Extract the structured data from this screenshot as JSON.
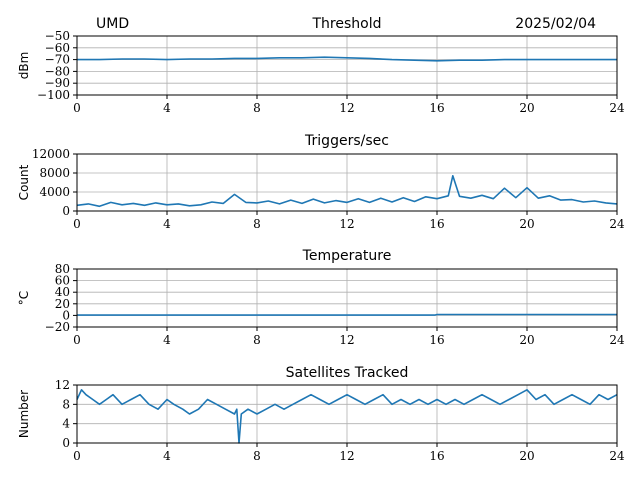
{
  "header": {
    "site": "UMD",
    "date": "2025/02/04"
  },
  "chart_data": [
    {
      "type": "line",
      "title": "Threshold",
      "xlabel": "",
      "ylabel": "dBm",
      "xlim": [
        0,
        24
      ],
      "ylim": [
        -100,
        -50
      ],
      "xticks": [
        0,
        4,
        8,
        12,
        16,
        20,
        24
      ],
      "yticks": [
        -100,
        -90,
        -80,
        -70,
        -60,
        -50
      ],
      "ytick_labels": [
        "−100",
        "−90",
        "−80",
        "−70",
        "−60",
        "−50"
      ],
      "grid": true,
      "color": "#1f77b4",
      "series": [
        {
          "x": [
            0,
            1,
            2,
            3,
            4,
            5,
            6,
            7,
            8,
            9,
            10,
            11,
            12,
            13,
            14,
            15,
            16,
            17,
            18,
            19,
            20,
            21,
            22,
            23,
            24
          ],
          "y": [
            -70,
            -70,
            -69.5,
            -69.5,
            -70,
            -69.5,
            -69.5,
            -69,
            -69,
            -68.5,
            -68.5,
            -68,
            -68.5,
            -69,
            -70,
            -70.5,
            -71,
            -70.5,
            -70.5,
            -70,
            -70,
            -70,
            -70,
            -70,
            -70
          ]
        }
      ]
    },
    {
      "type": "line",
      "title": "Triggers/sec",
      "xlabel": "",
      "ylabel": "Count",
      "xlim": [
        0,
        24
      ],
      "ylim": [
        0,
        12000
      ],
      "xticks": [
        0,
        4,
        8,
        12,
        16,
        20,
        24
      ],
      "yticks": [
        0,
        4000,
        8000,
        12000
      ],
      "ytick_labels": [
        "0",
        "4000",
        "8000",
        "12000"
      ],
      "grid": true,
      "color": "#1f77b4",
      "series": [
        {
          "x": [
            0,
            0.5,
            1,
            1.5,
            2,
            2.5,
            3,
            3.5,
            4,
            4.5,
            5,
            5.5,
            6,
            6.5,
            7,
            7.5,
            8,
            8.5,
            9,
            9.5,
            10,
            10.5,
            11,
            11.5,
            12,
            12.5,
            13,
            13.5,
            14,
            14.5,
            15,
            15.5,
            16,
            16.5,
            16.7,
            17,
            17.5,
            18,
            18.5,
            19,
            19.5,
            20,
            20.5,
            21,
            21.5,
            22,
            22.5,
            23,
            23.5,
            24
          ],
          "y": [
            1200,
            1500,
            1000,
            1800,
            1300,
            1600,
            1200,
            1700,
            1300,
            1500,
            1100,
            1300,
            1900,
            1600,
            3500,
            1800,
            1700,
            2100,
            1500,
            2300,
            1600,
            2500,
            1700,
            2200,
            1800,
            2600,
            1800,
            2700,
            1900,
            2800,
            2000,
            3000,
            2600,
            3200,
            7400,
            3100,
            2700,
            3300,
            2600,
            4800,
            2800,
            4900,
            2700,
            3200,
            2300,
            2400,
            1900,
            2100,
            1700,
            1500
          ]
        }
      ]
    },
    {
      "type": "line",
      "title": "Temperature",
      "xlabel": "",
      "ylabel": "°C",
      "xlim": [
        0,
        24
      ],
      "ylim": [
        -20,
        80
      ],
      "xticks": [
        0,
        4,
        8,
        12,
        16,
        20,
        24
      ],
      "yticks": [
        -20,
        0,
        20,
        40,
        60,
        80
      ],
      "ytick_labels": [
        "−20",
        "0",
        "20",
        "40",
        "60",
        "80"
      ],
      "grid": true,
      "color": "#1f77b4",
      "series": [
        {
          "x": [
            0,
            4,
            8,
            12,
            15.9,
            16,
            20,
            24
          ],
          "y": [
            0.5,
            0.5,
            0.5,
            0.5,
            0.5,
            1.5,
            1.5,
            1.5
          ]
        }
      ]
    },
    {
      "type": "line",
      "title": "Satellites Tracked",
      "xlabel": "",
      "ylabel": "Number",
      "xlim": [
        0,
        24
      ],
      "ylim": [
        0,
        12
      ],
      "xticks": [
        0,
        4,
        8,
        12,
        16,
        20,
        24
      ],
      "yticks": [
        0,
        4,
        8,
        12
      ],
      "ytick_labels": [
        "0",
        "4",
        "8",
        "12"
      ],
      "grid": true,
      "color": "#1f77b4",
      "series": [
        {
          "x": [
            0,
            0.2,
            0.4,
            0.7,
            1,
            1.3,
            1.6,
            2,
            2.4,
            2.8,
            3.2,
            3.6,
            4,
            4.3,
            4.7,
            5,
            5.4,
            5.8,
            6.2,
            6.6,
            7,
            7.1,
            7.2,
            7.3,
            7.6,
            8,
            8.4,
            8.8,
            9.2,
            9.6,
            10,
            10.4,
            10.8,
            11.2,
            11.6,
            12,
            12.4,
            12.8,
            13.2,
            13.6,
            14,
            14.4,
            14.8,
            15.2,
            15.6,
            16,
            16.4,
            16.8,
            17.2,
            17.6,
            18,
            18.4,
            18.8,
            19.2,
            19.6,
            20,
            20.4,
            20.8,
            21.2,
            21.6,
            22,
            22.4,
            22.8,
            23.2,
            23.6,
            24
          ],
          "y": [
            9,
            11,
            10,
            9,
            8,
            9,
            10,
            8,
            9,
            10,
            8,
            7,
            9,
            8,
            7,
            6,
            7,
            9,
            8,
            7,
            6,
            7,
            0,
            6,
            7,
            6,
            7,
            8,
            7,
            8,
            9,
            10,
            9,
            8,
            9,
            10,
            9,
            8,
            9,
            10,
            8,
            9,
            8,
            9,
            8,
            9,
            8,
            9,
            8,
            9,
            10,
            9,
            8,
            9,
            10,
            11,
            9,
            10,
            8,
            9,
            10,
            9,
            8,
            10,
            9,
            10
          ]
        }
      ]
    }
  ]
}
